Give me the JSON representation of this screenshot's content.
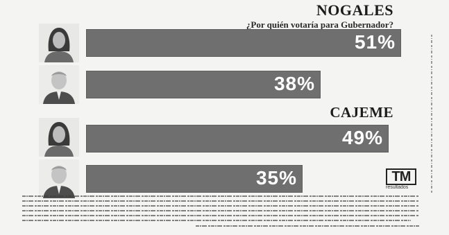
{
  "chart_data": [
    {
      "type": "bar",
      "orientation": "horizontal",
      "title": "NOGALES",
      "subtitle": "¿Por quién votaría para Gubernador?",
      "categories": [
        "candidate-woman",
        "candidate-man"
      ],
      "values": [
        51,
        38
      ],
      "labels": [
        "51%",
        "38%"
      ],
      "ylim": [
        0,
        100
      ]
    },
    {
      "type": "bar",
      "orientation": "horizontal",
      "title": "CAJEME",
      "categories": [
        "candidate-woman",
        "candidate-man"
      ],
      "values": [
        49,
        35
      ],
      "labels": [
        "49%",
        "35%"
      ],
      "ylim": [
        0,
        100
      ]
    }
  ],
  "colors": {
    "bar": "#6f6f6f",
    "bar_label": "#ffffff",
    "background": "#f4f4f2"
  },
  "logo": {
    "mark": "TM",
    "sub": "resultados"
  }
}
